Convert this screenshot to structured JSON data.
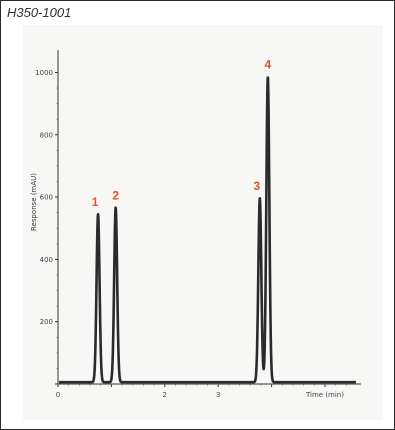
{
  "header": {
    "chart_id": "H350-1001"
  },
  "chart_data": {
    "type": "line",
    "title": "H350-1001",
    "xlabel": "Time (min)",
    "ylabel": "Response (mAU)",
    "xlim": [
      0,
      5.6
    ],
    "ylim": [
      0,
      1040
    ],
    "x_ticks": [
      0,
      1,
      2,
      3,
      4,
      5
    ],
    "y_ticks": [
      0,
      200,
      400,
      600,
      800,
      1000
    ],
    "x_tick_labels": [
      "0",
      "",
      "2",
      "3",
      "",
      "Time (min)"
    ],
    "y_tick_labels": [
      "",
      "200",
      "400",
      "600",
      "800",
      "1000"
    ],
    "series": [
      {
        "line_color": "#2b2b2b",
        "peaks": [
          {
            "label": "1",
            "time": 0.75,
            "height": 540
          },
          {
            "label": "2",
            "time": 1.08,
            "height": 560
          },
          {
            "label": "3",
            "time": 3.78,
            "height": 590
          },
          {
            "label": "4",
            "time": 3.93,
            "height": 980
          }
        ]
      }
    ],
    "peak_label_color": "#e0522b",
    "grid": false
  }
}
